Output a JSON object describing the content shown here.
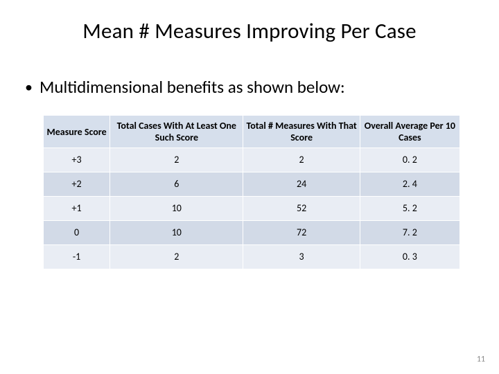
{
  "title": "Mean # Measures Improving Per Case",
  "bullet": "Multidimensional benefits as shown below:",
  "page_number": "11",
  "table": {
    "type": "table",
    "header_bg": "#d6dfec",
    "band_a_bg": "#e9edf4",
    "band_b_bg": "#d2dae7",
    "border_color": "#ffffff",
    "header_fontsize": 14,
    "cell_fontsize": 14,
    "col_widths_pct": [
      16,
      32,
      28,
      24
    ],
    "columns": [
      "Measure Score",
      "Total Cases With At Least One Such Score",
      "Total # Measures With That Score",
      "Overall Average Per 10 Cases"
    ],
    "rows": [
      [
        "+3",
        "2",
        "2",
        "0. 2"
      ],
      [
        "+2",
        "6",
        "24",
        "2. 4"
      ],
      [
        "+1",
        "10",
        "52",
        "5. 2"
      ],
      [
        "0",
        "10",
        "72",
        "7. 2"
      ],
      [
        "-1",
        "2",
        "3",
        "0. 3"
      ]
    ]
  }
}
